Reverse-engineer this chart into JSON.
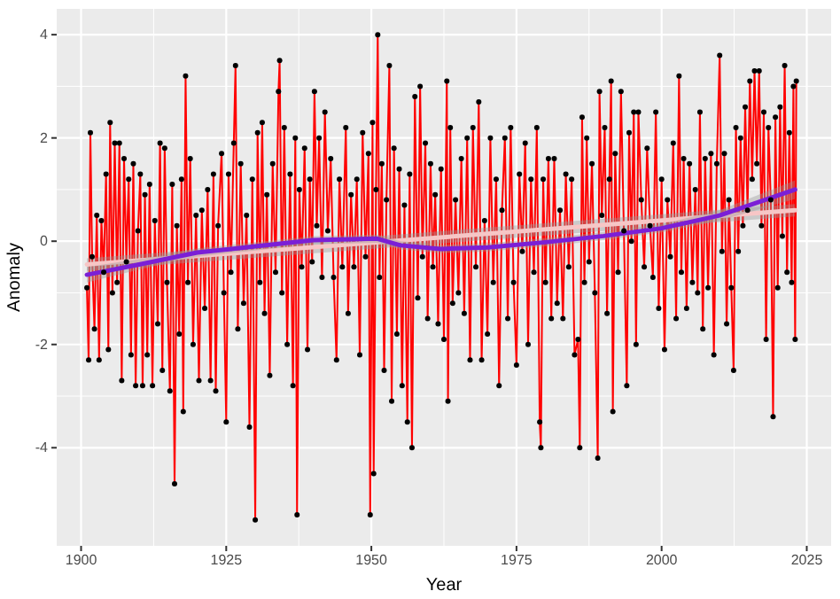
{
  "chart_data": {
    "type": "line",
    "xlabel": "Year",
    "ylabel": "Anomaly",
    "xlim": [
      1895.8,
      2029.2
    ],
    "ylim": [
      -5.9,
      4.5
    ],
    "xticks": [
      1900,
      1925,
      1950,
      1975,
      2000,
      2025
    ],
    "yticks": [
      -4,
      -2,
      0,
      2,
      4
    ],
    "grid": true,
    "series": [
      {
        "color": "#ff0000",
        "marker": "circle",
        "x": [
          1901.0,
          1901.3,
          1901.6,
          1901.9,
          1902.3,
          1902.7,
          1903.1,
          1903.5,
          1903.9,
          1904.3,
          1904.7,
          1905.0,
          1905.4,
          1905.8,
          1906.2,
          1906.6,
          1907.0,
          1907.4,
          1907.8,
          1908.2,
          1908.6,
          1909.0,
          1909.4,
          1909.8,
          1910.2,
          1910.6,
          1911.0,
          1911.4,
          1911.8,
          1912.3,
          1912.7,
          1913.2,
          1913.6,
          1914.0,
          1914.4,
          1914.8,
          1915.3,
          1915.7,
          1916.1,
          1916.5,
          1916.9,
          1917.3,
          1917.6,
          1918.0,
          1918.4,
          1918.8,
          1919.3,
          1919.8,
          1920.3,
          1920.8,
          1921.3,
          1921.8,
          1922.3,
          1922.8,
          1923.2,
          1923.6,
          1924.2,
          1924.6,
          1925.0,
          1925.4,
          1925.8,
          1926.3,
          1926.6,
          1927.0,
          1927.5,
          1928.0,
          1928.5,
          1929.0,
          1929.5,
          1930.0,
          1930.4,
          1930.8,
          1931.2,
          1931.6,
          1932.0,
          1932.5,
          1933.0,
          1933.5,
          1934.0,
          1934.2,
          1934.6,
          1935.0,
          1935.5,
          1936.0,
          1936.5,
          1936.9,
          1937.2,
          1937.6,
          1938.0,
          1938.5,
          1939.0,
          1939.4,
          1939.8,
          1940.2,
          1940.6,
          1941.0,
          1941.5,
          1942.0,
          1942.5,
          1943.0,
          1943.5,
          1944.0,
          1944.5,
          1945.0,
          1945.6,
          1946.0,
          1946.5,
          1947.0,
          1947.5,
          1948.0,
          1948.5,
          1949.0,
          1949.5,
          1949.8,
          1950.2,
          1950.4,
          1950.8,
          1951.1,
          1951.4,
          1951.8,
          1952.2,
          1952.6,
          1953.1,
          1953.5,
          1953.9,
          1954.4,
          1954.8,
          1955.3,
          1955.7,
          1956.2,
          1956.6,
          1957.0,
          1957.5,
          1958.0,
          1958.4,
          1958.8,
          1959.3,
          1959.7,
          1960.2,
          1960.6,
          1961.0,
          1961.5,
          1962.0,
          1962.5,
          1963.0,
          1963.2,
          1963.6,
          1964.0,
          1964.5,
          1965.0,
          1965.5,
          1966.0,
          1966.5,
          1967.0,
          1967.5,
          1968.0,
          1968.5,
          1969.0,
          1969.5,
          1970.0,
          1970.5,
          1971.0,
          1971.5,
          1972.0,
          1972.5,
          1973.0,
          1973.5,
          1974.0,
          1974.5,
          1975.0,
          1975.5,
          1976.0,
          1976.5,
          1977.0,
          1977.5,
          1978.0,
          1978.5,
          1979.0,
          1979.2,
          1979.6,
          1980.0,
          1980.5,
          1981.0,
          1981.5,
          1982.0,
          1982.5,
          1983.0,
          1983.5,
          1984.0,
          1984.5,
          1985.0,
          1985.6,
          1985.9,
          1986.3,
          1986.7,
          1987.1,
          1987.5,
          1988.0,
          1988.5,
          1989.0,
          1989.3,
          1989.7,
          1990.2,
          1990.6,
          1991.0,
          1991.3,
          1991.6,
          1992.0,
          1992.5,
          1993.0,
          1993.5,
          1994.0,
          1994.4,
          1994.8,
          1995.2,
          1995.6,
          1996.0,
          1996.5,
          1997.0,
          1997.5,
          1998.0,
          1998.5,
          1999.0,
          1999.5,
          2000.0,
          2000.5,
          2001.0,
          2001.5,
          2002.0,
          2002.5,
          2003.0,
          2003.4,
          2003.8,
          2004.3,
          2004.8,
          2005.3,
          2005.8,
          2006.2,
          2006.6,
          2007.1,
          2007.5,
          2008.0,
          2008.5,
          2009.0,
          2009.5,
          2010.0,
          2010.4,
          2010.8,
          2011.2,
          2011.6,
          2012.0,
          2012.4,
          2012.8,
          2013.2,
          2013.6,
          2014.0,
          2014.4,
          2014.8,
          2015.2,
          2015.6,
          2016.0,
          2016.4,
          2016.8,
          2017.2,
          2017.6,
          2018.0,
          2018.4,
          2018.8,
          2019.2,
          2019.6,
          2020.0,
          2020.4,
          2020.8,
          2021.2,
          2021.6,
          2022.0,
          2022.4,
          2022.7,
          2023.0,
          2023.2
        ],
        "values": [
          -0.9,
          -2.3,
          2.1,
          -0.3,
          -1.7,
          0.5,
          -2.3,
          0.4,
          -0.6,
          1.3,
          -2.1,
          2.3,
          -1.0,
          1.9,
          -0.8,
          1.9,
          -2.7,
          1.6,
          -0.4,
          1.2,
          -2.2,
          1.5,
          -2.8,
          0.2,
          1.3,
          -2.8,
          0.9,
          -2.2,
          1.1,
          -2.8,
          0.4,
          -1.6,
          1.9,
          -2.5,
          1.8,
          -0.8,
          -2.9,
          1.1,
          -4.7,
          0.3,
          -1.8,
          1.2,
          -3.3,
          3.2,
          -0.8,
          1.6,
          -2.0,
          0.5,
          -2.7,
          0.6,
          -1.3,
          1.0,
          -2.7,
          1.3,
          -2.9,
          0.3,
          1.7,
          -1.0,
          -3.5,
          1.3,
          -0.6,
          1.9,
          3.4,
          -1.7,
          1.5,
          -1.2,
          0.5,
          -3.6,
          1.2,
          -5.4,
          2.1,
          -0.8,
          2.3,
          -1.4,
          0.9,
          -2.6,
          1.5,
          -0.6,
          2.9,
          3.5,
          -1.0,
          2.2,
          -2.0,
          1.3,
          -2.8,
          2.0,
          -5.3,
          1.0,
          -0.5,
          1.8,
          -2.1,
          1.2,
          -0.4,
          2.9,
          0.3,
          2.0,
          -0.7,
          2.5,
          0.2,
          1.6,
          -0.7,
          -2.3,
          1.2,
          -0.5,
          2.2,
          -1.4,
          0.9,
          -0.5,
          1.2,
          -2.2,
          2.1,
          -0.3,
          1.7,
          -5.3,
          2.3,
          -4.5,
          1.0,
          4.0,
          -0.7,
          1.5,
          -2.5,
          0.8,
          3.4,
          -3.1,
          1.8,
          -1.8,
          1.4,
          -2.8,
          0.7,
          -3.5,
          1.3,
          -4.0,
          2.8,
          -1.1,
          3.0,
          -0.3,
          1.9,
          -1.5,
          1.5,
          -0.5,
          0.9,
          -1.6,
          1.4,
          -1.9,
          3.1,
          -3.1,
          2.2,
          -1.2,
          0.8,
          -1.0,
          1.6,
          -1.4,
          2.0,
          -2.3,
          2.2,
          -0.5,
          2.7,
          -2.3,
          0.4,
          -1.8,
          2.0,
          -0.8,
          1.2,
          -2.8,
          0.6,
          2.0,
          -1.5,
          2.2,
          -0.8,
          -2.4,
          1.3,
          -0.2,
          1.9,
          -2.0,
          1.2,
          -0.6,
          2.2,
          -3.5,
          -4.0,
          1.2,
          -0.8,
          1.6,
          -1.5,
          1.6,
          -1.2,
          0.6,
          -1.5,
          1.3,
          -0.5,
          1.2,
          -2.2,
          -1.9,
          -4.0,
          2.4,
          -0.8,
          2.0,
          -0.4,
          1.5,
          -1.0,
          -4.2,
          2.9,
          0.5,
          2.2,
          -1.4,
          1.2,
          3.1,
          -3.3,
          1.7,
          -0.6,
          2.9,
          0.2,
          -2.8,
          2.1,
          0.0,
          2.5,
          -2.0,
          2.5,
          0.8,
          -0.5,
          1.8,
          0.3,
          -0.7,
          2.5,
          -1.3,
          1.2,
          -2.1,
          0.8,
          -0.3,
          1.9,
          -1.5,
          3.2,
          -0.6,
          1.6,
          -1.3,
          1.5,
          -0.8,
          1.0,
          -1.0,
          2.5,
          -1.7,
          1.6,
          -0.9,
          1.7,
          -2.2,
          1.5,
          3.6,
          -0.2,
          1.7,
          -1.6,
          0.8,
          -0.9,
          -2.5,
          2.2,
          -0.2,
          2.0,
          0.3,
          2.6,
          0.6,
          3.1,
          1.2,
          3.3,
          1.5,
          3.3,
          0.3,
          2.5,
          -1.9,
          2.2,
          0.8,
          -3.4,
          2.4,
          -0.9,
          2.6,
          0.1,
          3.4,
          -0.6,
          2.1,
          -0.8,
          3.0,
          -1.9,
          3.1
        ]
      },
      {
        "color": "#f7c6c6",
        "marker": "none",
        "x": [
          1901,
          2023
        ],
        "values": [
          -0.45,
          0.6
        ],
        "lower": [
          -0.57,
          0.48
        ],
        "upper": [
          -0.33,
          0.72
        ]
      },
      {
        "color": "#7b1fd6",
        "marker": "none",
        "x": [
          1901,
          1910,
          1920,
          1930,
          1940,
          1951,
          1955,
          1962,
          1970,
          1980,
          1990,
          2000,
          2010,
          2023
        ],
        "values": [
          -0.65,
          -0.45,
          -0.22,
          -0.1,
          0.02,
          0.05,
          -0.08,
          -0.15,
          -0.12,
          -0.02,
          0.1,
          0.25,
          0.5,
          1.0
        ],
        "lower": [
          -0.8,
          -0.55,
          -0.3,
          -0.18,
          -0.06,
          -0.03,
          -0.16,
          -0.23,
          -0.2,
          -0.1,
          0.02,
          0.17,
          0.4,
          0.82
        ],
        "upper": [
          -0.5,
          -0.35,
          -0.14,
          -0.02,
          0.1,
          0.13,
          0.0,
          -0.07,
          -0.04,
          0.06,
          0.18,
          0.33,
          0.6,
          1.18
        ]
      }
    ]
  }
}
